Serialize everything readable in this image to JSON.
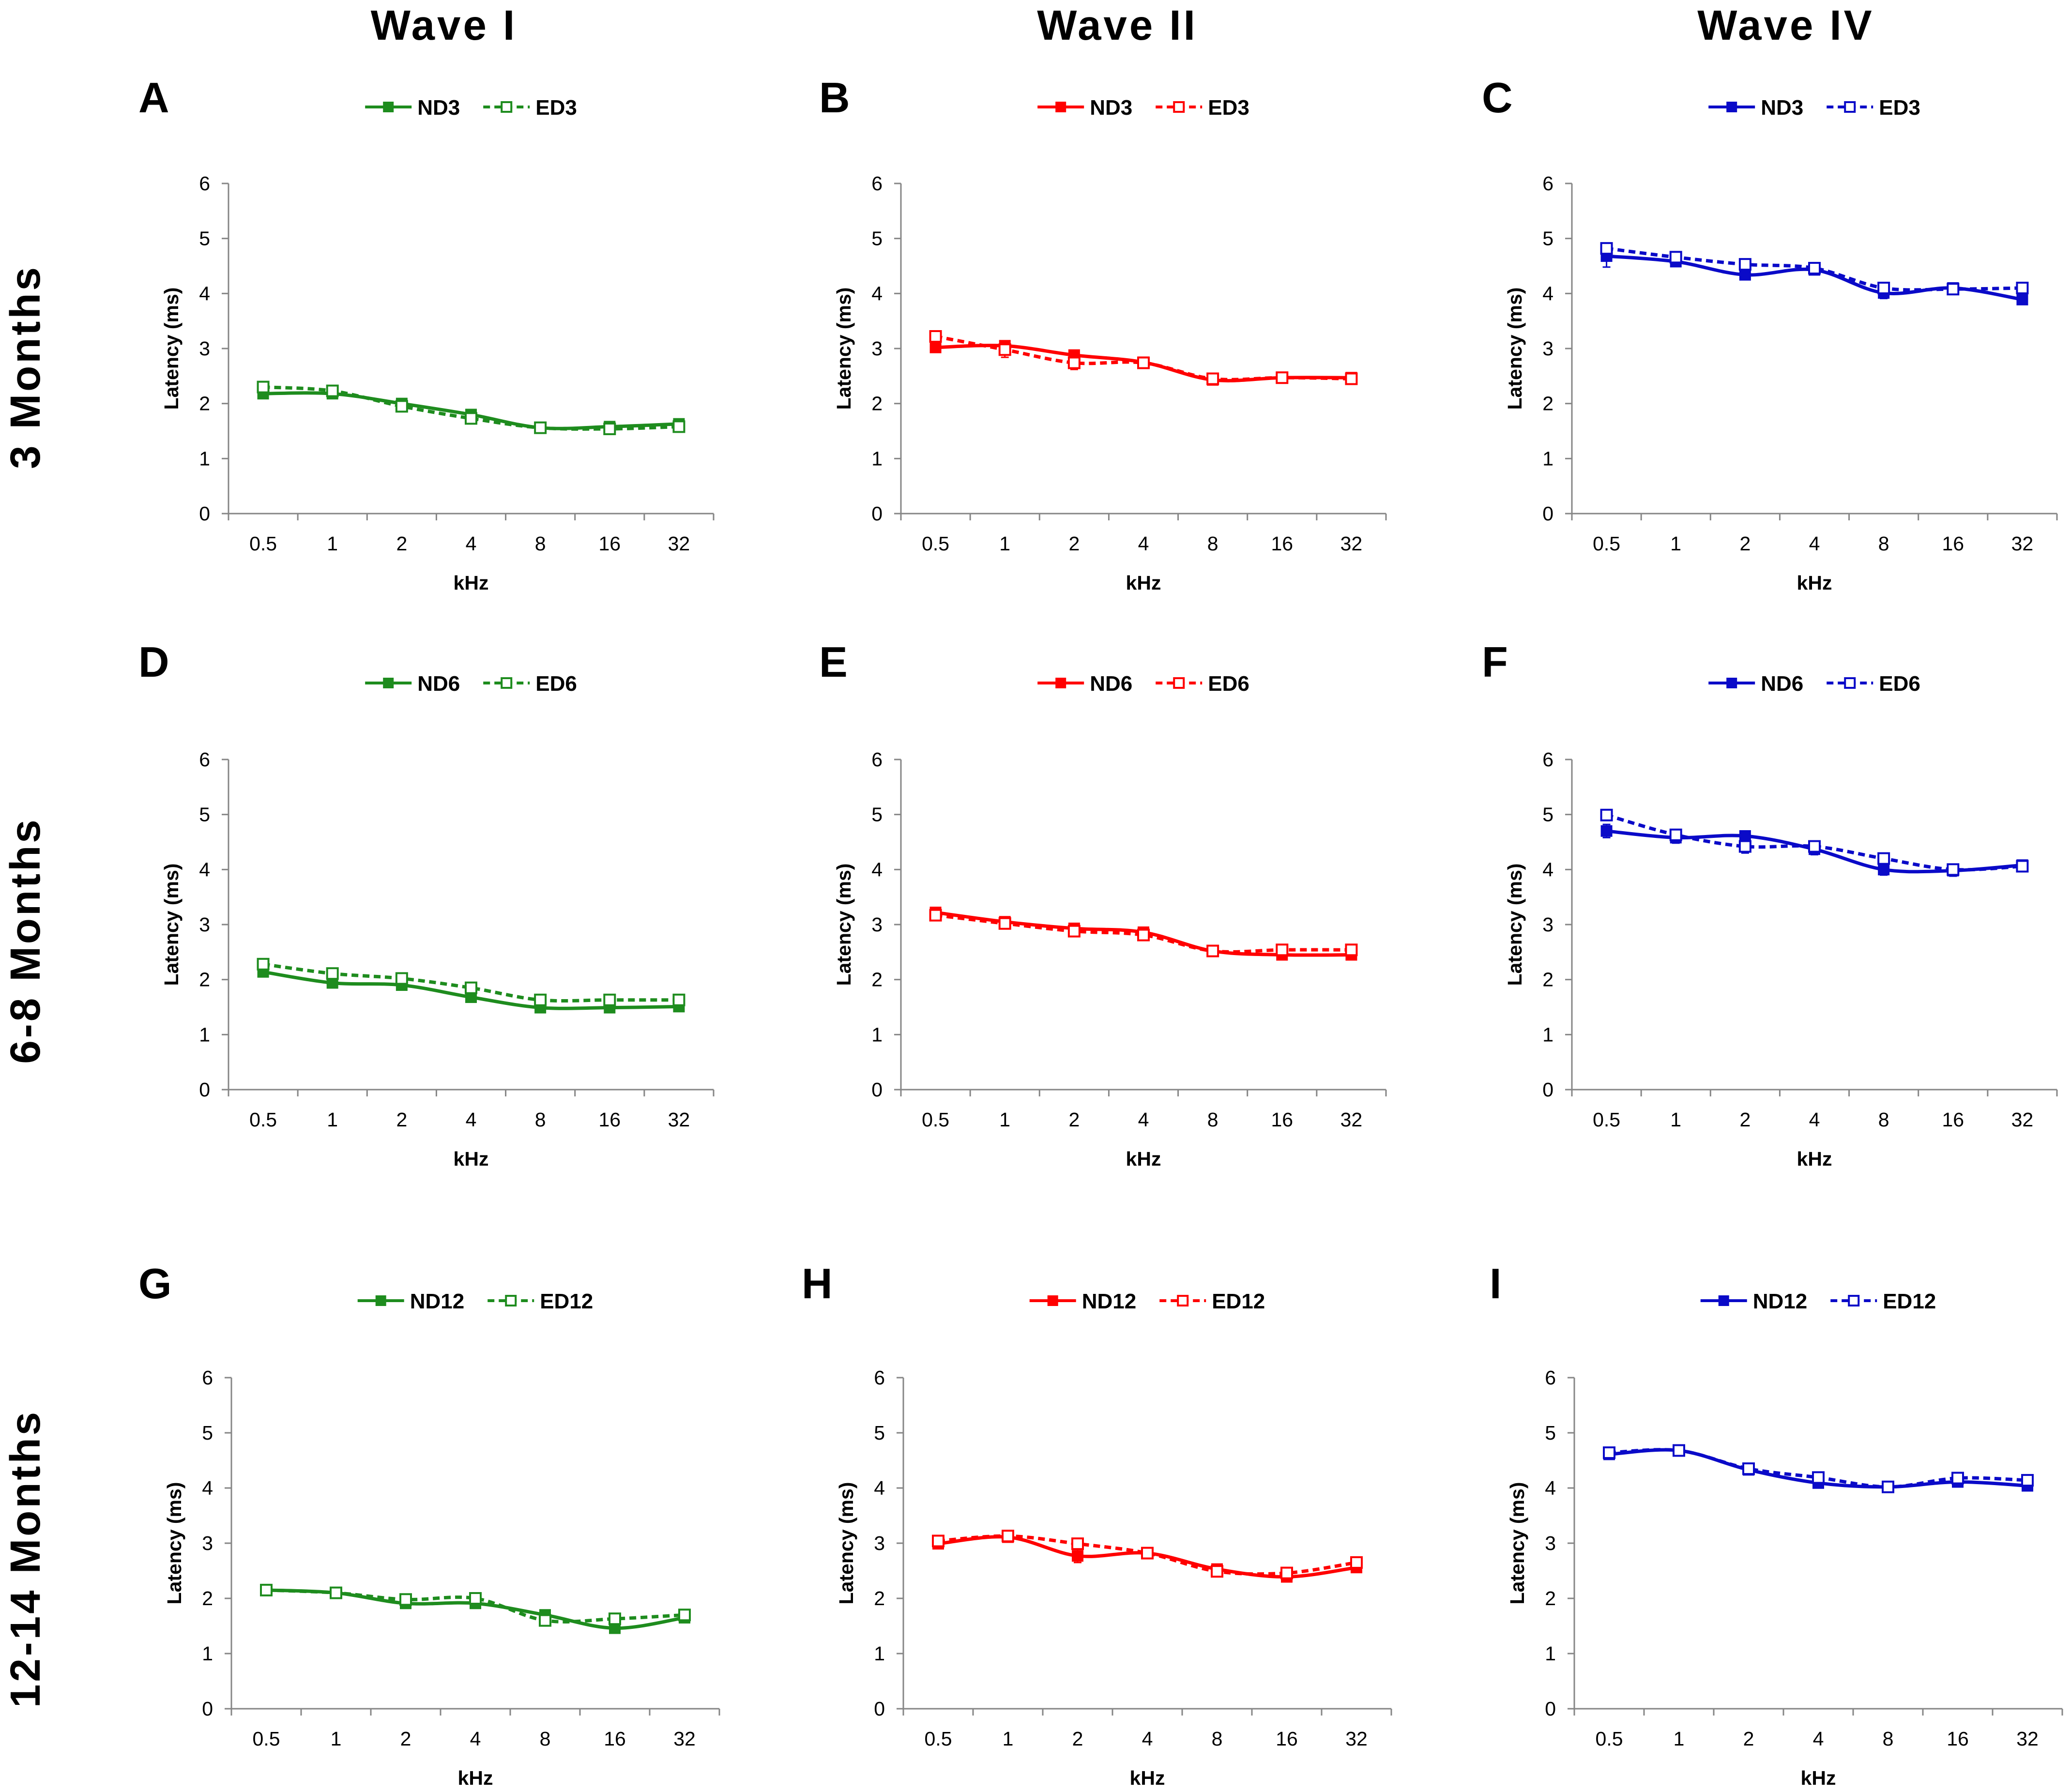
{
  "column_titles": [
    "Wave I",
    "Wave II",
    "Wave IV"
  ],
  "row_labels": [
    "3 Months",
    "6-8 Months",
    "12-14 Months"
  ],
  "colors": {
    "wave_i": "#1e8c1e",
    "wave_ii": "#ff0000",
    "wave_iv": "#0a0ac8",
    "axis": "#868686"
  },
  "chart_data": [
    {
      "panel": "A",
      "type": "line",
      "categories": [
        "0.5",
        "1",
        "2",
        "4",
        "8",
        "16",
        "32"
      ],
      "xlabel": "kHz",
      "ylabel": "Latency (ms)",
      "ylim": [
        0,
        6
      ],
      "yticks": [
        0,
        1,
        2,
        3,
        4,
        5,
        6
      ],
      "series": [
        {
          "name": "ND3",
          "color": "#1e8c1e",
          "line": "solid",
          "marker": "filled-square",
          "values": [
            2.18,
            2.18,
            2.0,
            1.8,
            1.56,
            1.58,
            1.63
          ],
          "errors": [
            0.06,
            0.05,
            0.05,
            0.06,
            0.04,
            0.05,
            0.05
          ]
        },
        {
          "name": "ED3",
          "color": "#1e8c1e",
          "line": "dashed",
          "marker": "open-square",
          "values": [
            2.3,
            2.23,
            1.95,
            1.73,
            1.56,
            1.54,
            1.58
          ],
          "errors": [
            0.07,
            0.08,
            0.05,
            0.08,
            0.04,
            0.05,
            0.05
          ]
        }
      ]
    },
    {
      "panel": "B",
      "type": "line",
      "categories": [
        "0.5",
        "1",
        "2",
        "4",
        "8",
        "16",
        "32"
      ],
      "xlabel": "kHz",
      "ylabel": "Latency (ms)",
      "ylim": [
        0,
        6
      ],
      "yticks": [
        0,
        1,
        2,
        3,
        4,
        5,
        6
      ],
      "series": [
        {
          "name": "ND3",
          "color": "#ff0000",
          "line": "solid",
          "marker": "filled-square",
          "values": [
            3.02,
            3.05,
            2.88,
            2.75,
            2.43,
            2.47,
            2.47
          ],
          "errors": [
            0.07,
            0.06,
            0.07,
            0.06,
            0.05,
            0.05,
            0.06
          ]
        },
        {
          "name": "ED3",
          "color": "#ff0000",
          "line": "dashed",
          "marker": "open-square",
          "values": [
            3.22,
            2.98,
            2.74,
            2.74,
            2.45,
            2.47,
            2.45
          ],
          "errors": [
            0.08,
            0.14,
            0.12,
            0.07,
            0.05,
            0.05,
            0.09
          ]
        }
      ]
    },
    {
      "panel": "C",
      "type": "line",
      "categories": [
        "0.5",
        "1",
        "2",
        "4",
        "8",
        "16",
        "32"
      ],
      "xlabel": "kHz",
      "ylabel": "Latency (ms)",
      "ylim": [
        0,
        6
      ],
      "yticks": [
        0,
        1,
        2,
        3,
        4,
        5,
        6
      ],
      "series": [
        {
          "name": "ND3",
          "color": "#0a0ac8",
          "line": "solid",
          "marker": "filled-square",
          "values": [
            4.68,
            4.58,
            4.34,
            4.43,
            4.01,
            4.1,
            3.89
          ],
          "errors": [
            0.2,
            0.07,
            0.07,
            0.06,
            0.1,
            0.08,
            0.06
          ]
        },
        {
          "name": "ED3",
          "color": "#0a0ac8",
          "line": "dashed",
          "marker": "open-square",
          "values": [
            4.82,
            4.66,
            4.53,
            4.46,
            4.1,
            4.08,
            4.1
          ],
          "errors": [
            0.07,
            0.08,
            0.06,
            0.08,
            0.07,
            0.06,
            0.05
          ]
        }
      ]
    },
    {
      "panel": "D",
      "type": "line",
      "categories": [
        "0.5",
        "1",
        "2",
        "4",
        "8",
        "16",
        "32"
      ],
      "xlabel": "kHz",
      "ylabel": "Latency (ms)",
      "ylim": [
        0,
        6
      ],
      "yticks": [
        0,
        1,
        2,
        3,
        4,
        5,
        6
      ],
      "series": [
        {
          "name": "ND6",
          "color": "#1e8c1e",
          "line": "solid",
          "marker": "filled-square",
          "values": [
            2.14,
            1.94,
            1.9,
            1.68,
            1.49,
            1.49,
            1.51
          ],
          "errors": [
            0.05,
            0.05,
            0.06,
            0.06,
            0.05,
            0.04,
            0.05
          ]
        },
        {
          "name": "ED6",
          "color": "#1e8c1e",
          "line": "dashed",
          "marker": "open-square",
          "values": [
            2.28,
            2.11,
            2.02,
            1.85,
            1.63,
            1.63,
            1.63
          ],
          "errors": [
            0.05,
            0.05,
            0.05,
            0.05,
            0.04,
            0.05,
            0.05
          ]
        }
      ]
    },
    {
      "panel": "E",
      "type": "line",
      "categories": [
        "0.5",
        "1",
        "2",
        "4",
        "8",
        "16",
        "32"
      ],
      "xlabel": "kHz",
      "ylabel": "Latency (ms)",
      "ylim": [
        0,
        6
      ],
      "yticks": [
        0,
        1,
        2,
        3,
        4,
        5,
        6
      ],
      "series": [
        {
          "name": "ND6",
          "color": "#ff0000",
          "line": "solid",
          "marker": "filled-square",
          "values": [
            3.22,
            3.05,
            2.93,
            2.86,
            2.52,
            2.45,
            2.45
          ],
          "errors": [
            0.06,
            0.06,
            0.08,
            0.07,
            0.05,
            0.05,
            0.05
          ]
        },
        {
          "name": "ED6",
          "color": "#ff0000",
          "line": "dashed",
          "marker": "open-square",
          "values": [
            3.17,
            3.02,
            2.88,
            2.81,
            2.52,
            2.54,
            2.54
          ],
          "errors": [
            0.05,
            0.06,
            0.06,
            0.08,
            0.05,
            0.05,
            0.05
          ]
        }
      ]
    },
    {
      "panel": "F",
      "type": "line",
      "categories": [
        "0.5",
        "1",
        "2",
        "4",
        "8",
        "16",
        "32"
      ],
      "xlabel": "kHz",
      "ylabel": "Latency (ms)",
      "ylim": [
        0,
        6
      ],
      "yticks": [
        0,
        1,
        2,
        3,
        4,
        5,
        6
      ],
      "series": [
        {
          "name": "ND6",
          "color": "#0a0ac8",
          "line": "solid",
          "marker": "filled-square",
          "values": [
            4.7,
            4.58,
            4.61,
            4.37,
            4.0,
            3.98,
            4.08
          ],
          "errors": [
            0.12,
            0.1,
            0.07,
            0.1,
            0.1,
            0.1,
            0.07
          ]
        },
        {
          "name": "ED6",
          "color": "#0a0ac8",
          "line": "dashed",
          "marker": "open-square",
          "values": [
            4.99,
            4.63,
            4.42,
            4.42,
            4.2,
            4.0,
            4.06
          ],
          "errors": [
            0.06,
            0.07,
            0.12,
            0.08,
            0.08,
            0.06,
            0.07
          ]
        }
      ]
    },
    {
      "panel": "G",
      "type": "line",
      "categories": [
        "0.5",
        "1",
        "2",
        "4",
        "8",
        "16",
        "32"
      ],
      "xlabel": "kHz",
      "ylabel": "Latency (ms)",
      "ylim": [
        0,
        6
      ],
      "yticks": [
        0,
        1,
        2,
        3,
        4,
        5,
        6
      ],
      "series": [
        {
          "name": "ND12",
          "color": "#1e8c1e",
          "line": "solid",
          "marker": "filled-square",
          "values": [
            2.15,
            2.1,
            1.91,
            1.91,
            1.7,
            1.46,
            1.65
          ],
          "errors": [
            0.05,
            0.05,
            0.05,
            0.05,
            0.05,
            0.05,
            0.05
          ]
        },
        {
          "name": "ED12",
          "color": "#1e8c1e",
          "line": "dashed",
          "marker": "open-square",
          "values": [
            2.15,
            2.1,
            1.98,
            2.0,
            1.6,
            1.63,
            1.7
          ],
          "errors": [
            0.04,
            0.05,
            0.06,
            0.05,
            0.06,
            0.05,
            0.05
          ]
        }
      ]
    },
    {
      "panel": "H",
      "type": "line",
      "categories": [
        "0.5",
        "1",
        "2",
        "4",
        "8",
        "16",
        "32"
      ],
      "xlabel": "kHz",
      "ylabel": "Latency (ms)",
      "ylim": [
        0,
        6
      ],
      "yticks": [
        0,
        1,
        2,
        3,
        4,
        5,
        6
      ],
      "series": [
        {
          "name": "ND12",
          "color": "#ff0000",
          "line": "solid",
          "marker": "filled-square",
          "values": [
            2.99,
            3.11,
            2.77,
            2.82,
            2.53,
            2.39,
            2.56
          ],
          "errors": [
            0.05,
            0.06,
            0.12,
            0.06,
            0.05,
            0.06,
            0.06
          ]
        },
        {
          "name": "ED12",
          "color": "#ff0000",
          "line": "dashed",
          "marker": "open-square",
          "values": [
            3.04,
            3.13,
            2.99,
            2.82,
            2.49,
            2.46,
            2.65
          ],
          "errors": [
            0.05,
            0.05,
            0.05,
            0.05,
            0.05,
            0.05,
            0.05
          ]
        }
      ]
    },
    {
      "panel": "I",
      "type": "line",
      "categories": [
        "0.5",
        "1",
        "2",
        "4",
        "8",
        "16",
        "32"
      ],
      "xlabel": "kHz",
      "ylabel": "Latency (ms)",
      "ylim": [
        0,
        6
      ],
      "yticks": [
        0,
        1,
        2,
        3,
        4,
        5,
        6
      ],
      "series": [
        {
          "name": "ND12",
          "color": "#0a0ac8",
          "line": "solid",
          "marker": "filled-square",
          "values": [
            4.61,
            4.68,
            4.33,
            4.09,
            4.02,
            4.11,
            4.04
          ],
          "errors": [
            0.06,
            0.08,
            0.06,
            0.06,
            0.05,
            0.07,
            0.06
          ]
        },
        {
          "name": "ED12",
          "color": "#0a0ac8",
          "line": "dashed",
          "marker": "open-square",
          "values": [
            4.64,
            4.68,
            4.35,
            4.19,
            4.02,
            4.18,
            4.14
          ],
          "errors": [
            0.05,
            0.05,
            0.05,
            0.05,
            0.04,
            0.05,
            0.05
          ]
        }
      ]
    }
  ]
}
